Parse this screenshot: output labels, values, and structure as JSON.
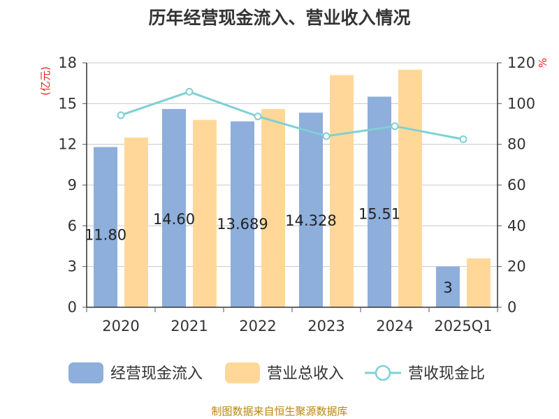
{
  "chart_data": {
    "type": "bar",
    "title": "历年经营现金流入、营业收入情况",
    "categories": [
      "2020",
      "2021",
      "2022",
      "2023",
      "2024",
      "2025Q1"
    ],
    "series": [
      {
        "name": "经营现金流入",
        "type": "bar",
        "axis": "left",
        "color": "#8eaedb",
        "values": [
          11.8,
          14.6,
          13.69,
          14.33,
          15.51,
          3.0
        ]
      },
      {
        "name": "营业总收入",
        "type": "bar",
        "axis": "left",
        "color": "#ffd899",
        "values": [
          12.5,
          13.8,
          14.6,
          17.1,
          17.5,
          3.6
        ]
      },
      {
        "name": "营收现金比",
        "type": "line",
        "axis": "right",
        "color": "#7fd0d4",
        "values": [
          94.3,
          105.8,
          93.7,
          84.0,
          88.9,
          82.5
        ]
      }
    ],
    "data_labels": [
      "11.80",
      "14.60",
      "13.689",
      "14.328",
      "15.51",
      "3"
    ],
    "y_left": {
      "unit": "(亿元)",
      "ylim": [
        0,
        18
      ],
      "ticks": [
        "0",
        "3",
        "6",
        "9",
        "12",
        "15",
        "18"
      ]
    },
    "y_right": {
      "unit": "%",
      "ylim": [
        0,
        120
      ],
      "ticks": [
        "0",
        "20",
        "40",
        "60",
        "80",
        "100",
        "120"
      ]
    },
    "grid": true,
    "legend_position": "bottom"
  },
  "source_note": "制图数据来自恒生聚源数据库"
}
